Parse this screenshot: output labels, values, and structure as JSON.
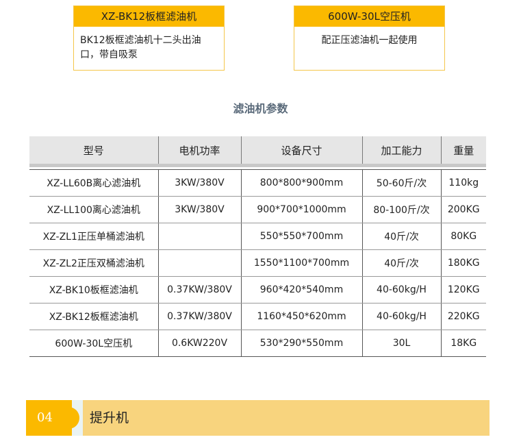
{
  "cards": [
    {
      "title": "XZ-BK12板框滤油机",
      "body": "BK12板框滤油机十二头出油口，带自吸泵"
    },
    {
      "title": "600W-30L空压机",
      "body": "配正压滤油机一起使用"
    }
  ],
  "table_title": "滤油机参数",
  "table": {
    "headers": [
      "型号",
      "电机功率",
      "设备尺寸",
      "加工能力",
      "重量"
    ],
    "rows": [
      [
        "XZ-LL60B离心滤油机",
        "3KW/380V",
        "800*800*900mm",
        "50-60斤/次",
        "110kg"
      ],
      [
        "XZ-LL100离心滤油机",
        "3KW/380V",
        "900*700*1000mm",
        "80-100斤/次",
        "200KG"
      ],
      [
        "XZ-ZL1正压单桶滤油机",
        "",
        "550*550*700mm",
        "40斤/次",
        "80KG"
      ],
      [
        "XZ-ZL2正压双桶滤油机",
        "",
        "1550*1100*700mm",
        "40斤/次",
        "180KG"
      ],
      [
        "XZ-BK10板框滤油机",
        "0.37KW/380V",
        "960*420*540mm",
        "40-60kg/H",
        "120KG"
      ],
      [
        "XZ-BK12板框滤油机",
        "0.37KW/380V",
        "1160*450*620mm",
        "40-60kg/H",
        "220KG"
      ],
      [
        "600W-30L空压机",
        "0.6KW220V",
        "530*290*550mm",
        "30L",
        "18KG"
      ]
    ]
  },
  "section": {
    "number": "04",
    "title": "提升机"
  },
  "colors": {
    "accent": "#fbb900",
    "section_bar": "#f8d47e",
    "header_bg": "#e6e6e6"
  }
}
